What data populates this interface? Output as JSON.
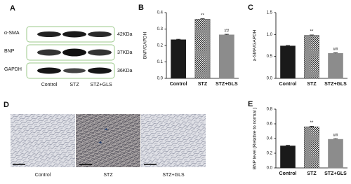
{
  "western_blot": {
    "panel_label": "A",
    "rows": [
      {
        "label": "α-SMA",
        "size": "42KDa"
      },
      {
        "label": "BNP",
        "size": "37KDa"
      },
      {
        "label": "GAPDH",
        "size": "36KDa"
      }
    ],
    "groups": [
      "Control",
      "STZ",
      "STZ+GLS"
    ]
  },
  "histology": {
    "panel_label": "D",
    "groups": [
      "Control",
      "STZ",
      "STZ+GLS"
    ]
  },
  "chart_data": [
    {
      "type": "bar",
      "panel_label": "B",
      "y_label": "BNP/GAPDH",
      "categories": [
        "Control",
        "STZ",
        "STZ+GLS"
      ],
      "values": [
        0.235,
        0.36,
        0.265
      ],
      "errors": [
        0.003,
        0.003,
        0.003
      ],
      "colors": [
        "#1a1a1a",
        "#3a3a3a",
        "#8c8c8c"
      ],
      "hatch": [
        false,
        true,
        false
      ],
      "annotations": [
        {
          "index": 1,
          "text": "**"
        },
        {
          "index": 2,
          "text": "##"
        }
      ],
      "ylim": [
        0,
        0.4
      ],
      "yticks": [
        {
          "value": 0,
          "label": "0.0"
        },
        0.1,
        0.2,
        0.3,
        0.4
      ]
    },
    {
      "type": "bar",
      "panel_label": "C",
      "y_label": "a-SMA/GAPDH",
      "categories": [
        "Control",
        "STZ",
        "STZ+GLS"
      ],
      "values": [
        0.74,
        0.98,
        0.57
      ],
      "errors": [
        0.01,
        0.01,
        0.01
      ],
      "colors": [
        "#1a1a1a",
        "#3a3a3a",
        "#8c8c8c"
      ],
      "hatch": [
        false,
        true,
        false
      ],
      "annotations": [
        {
          "index": 1,
          "text": "**"
        },
        {
          "index": 2,
          "text": "##"
        }
      ],
      "ylim": [
        0,
        1.5
      ],
      "yticks": [
        {
          "value": 0,
          "label": "0.0"
        },
        0.5,
        {
          "value": 1,
          "label": "1.0"
        },
        1.5
      ]
    },
    {
      "type": "bar",
      "panel_label": "E",
      "y_label": "BNP level (Relative to normal )",
      "categories": [
        "Control",
        "STZ",
        "STZ+GLS"
      ],
      "values": [
        0.3,
        0.56,
        0.39
      ],
      "errors": [
        0.008,
        0.008,
        0.008
      ],
      "colors": [
        "#1a1a1a",
        "#3a3a3a",
        "#8c8c8c"
      ],
      "hatch": [
        false,
        true,
        false
      ],
      "annotations": [
        {
          "index": 1,
          "text": "**"
        },
        {
          "index": 2,
          "text": "##"
        }
      ],
      "ylim": [
        0,
        0.8
      ],
      "yticks": [
        {
          "value": 0,
          "label": "0.0"
        },
        0.2,
        0.4,
        0.6,
        0.8
      ]
    }
  ]
}
